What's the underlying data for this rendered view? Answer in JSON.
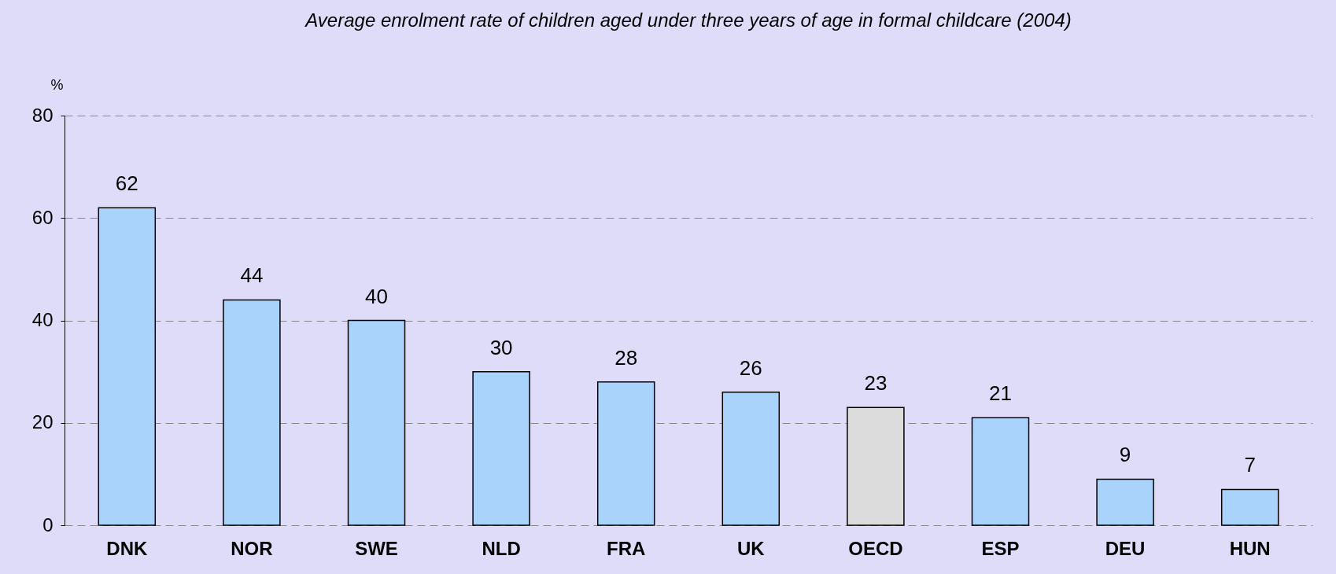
{
  "chart_data": {
    "type": "bar",
    "title": "Average enrolment rate of children aged under three years of age in formal childcare (2004)",
    "ylabel": "%",
    "categories": [
      "DNK",
      "NOR",
      "SWE",
      "NLD",
      "FRA",
      "UK",
      "OECD",
      "ESP",
      "DEU",
      "HUN"
    ],
    "values": [
      62,
      44,
      40,
      30,
      28,
      26,
      23,
      21,
      9,
      7
    ],
    "colors": [
      "#a9d3fb",
      "#a9d3fb",
      "#a9d3fb",
      "#a9d3fb",
      "#a9d3fb",
      "#a9d3fb",
      "#dcdcdc",
      "#a9d3fb",
      "#a9d3fb",
      "#a9d3fb"
    ],
    "ylim": [
      0,
      80
    ],
    "yticks": [
      0,
      20,
      40,
      60,
      80
    ],
    "grid": "y",
    "data_labels": true
  }
}
